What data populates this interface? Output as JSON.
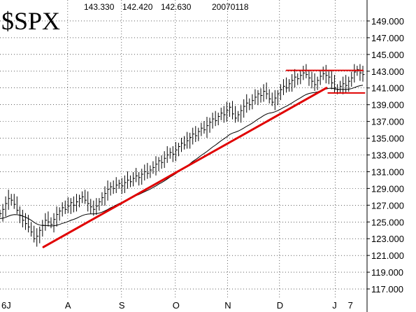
{
  "header": {
    "symbol": "$SPX",
    "high": "143.330",
    "low": "142.420",
    "close": "142.630",
    "date": "20070118"
  },
  "chart_data": {
    "type": "bar",
    "grid": true,
    "ylim": [
      116,
      150
    ],
    "y_ticks": [
      "117.000",
      "119.000",
      "121.000",
      "123.000",
      "125.000",
      "127.000",
      "129.000",
      "131.000",
      "133.000",
      "135.000",
      "137.000",
      "139.000",
      "141.000",
      "143.000",
      "145.000",
      "147.000",
      "149.000"
    ],
    "y_tick_values": [
      117,
      119,
      121,
      123,
      125,
      127,
      129,
      131,
      133,
      135,
      137,
      139,
      141,
      143,
      145,
      147,
      149
    ],
    "x_ticks": [
      "6J",
      "A",
      "S",
      "O",
      "N",
      "D",
      "J",
      "7"
    ],
    "x_tick_positions": [
      "2006-06-30",
      "2006-08-01",
      "2006-09-01",
      "2006-10-02",
      "2006-11-01",
      "2006-12-01",
      "2007-01-02",
      "2007-01-11"
    ],
    "date_range": [
      "2006-06-23",
      "2007-01-18"
    ],
    "closes_2006_07_to_2007_01": [
      126.0,
      126.5,
      127.2,
      127.8,
      127.6,
      127.1,
      126.4,
      125.8,
      125.2,
      124.8,
      124.4,
      123.8,
      123.0,
      123.3,
      124.0,
      124.6,
      125.2,
      125.0,
      124.7,
      125.3,
      125.9,
      126.3,
      126.7,
      126.5,
      126.9,
      127.3,
      127.0,
      127.4,
      127.8,
      128.0,
      127.6,
      127.2,
      126.8,
      126.5,
      126.9,
      127.4,
      127.9,
      128.4,
      128.9,
      129.2,
      129.0,
      129.4,
      129.6,
      129.3,
      129.7,
      130.0,
      129.8,
      130.2,
      130.5,
      130.3,
      130.7,
      131.0,
      130.8,
      131.2,
      131.5,
      131.9,
      132.3,
      132.1,
      132.6,
      133.0,
      133.3,
      133.1,
      133.6,
      134.0,
      134.4,
      134.2,
      134.7,
      135.1,
      135.5,
      135.3,
      135.8,
      136.2,
      136.0,
      136.5,
      136.9,
      137.3,
      137.1,
      137.6,
      138.0,
      137.8,
      138.3,
      138.7,
      137.9,
      137.4,
      137.8,
      138.3,
      138.8,
      139.2,
      139.0,
      139.5,
      139.9,
      140.3,
      140.1,
      140.6,
      140.3,
      139.7,
      139.3,
      139.8,
      140.3,
      140.8,
      141.2,
      141.0,
      141.5,
      141.9,
      142.3,
      142.1,
      142.5,
      142.8,
      142.6,
      142.2,
      141.8,
      141.4,
      141.9,
      142.4,
      142.7,
      142.5,
      142.3,
      141.6,
      141.0,
      140.8,
      141.2,
      141.5,
      141.3,
      141.8,
      142.2,
      142.9,
      143.2,
      142.8,
      142.6
    ],
    "moving_average_start": 126.0,
    "support_trendline": {
      "start": [
        "2006-07-18",
        122.0
      ],
      "end": [
        "2006-12-28",
        141.0
      ]
    },
    "resistance_line": {
      "start": [
        "2006-12-05",
        143.1
      ],
      "end": [
        "2007-01-18",
        143.1
      ]
    },
    "support_line": {
      "start": [
        "2006-12-29",
        140.4
      ],
      "end": [
        "2007-01-19",
        140.4
      ]
    },
    "colors": {
      "bars": "#000000",
      "moving_average": "#000000",
      "annotations": "#e00000"
    }
  }
}
